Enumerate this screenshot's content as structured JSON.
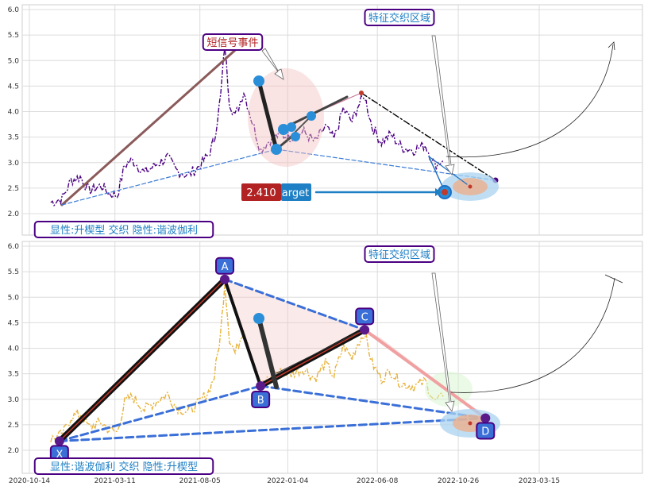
{
  "chart_data": [
    {
      "type": "line",
      "panel": "top",
      "ylim": [
        1.6,
        6.1
      ],
      "yticks": [
        "2.0",
        "2.5",
        "3.0",
        "3.5",
        "4.0",
        "4.5",
        "5.0",
        "5.5",
        "6.0"
      ],
      "xticks": [],
      "grid": true,
      "series_color": "#4b0082",
      "series": [
        {
          "x": [],
          "values": []
        }
      ],
      "annotations": {
        "event_label": "短信号事件",
        "zone_label": "特征交织区域",
        "pattern_label": "显性:升楔型 交织 隐性:谐波伽利",
        "target_value": "2.410",
        "target_text": "arget"
      }
    },
    {
      "type": "line",
      "panel": "bottom",
      "ylim": [
        1.6,
        6.1
      ],
      "yticks": [
        "2.0",
        "2.5",
        "3.0",
        "3.5",
        "4.0",
        "4.5",
        "5.0",
        "5.5",
        "6.0"
      ],
      "xticks": [
        "2020-10-14",
        "2021-03-11",
        "2021-08-05",
        "2022-01-04",
        "2022-06-08",
        "2022-10-26",
        "2023-03-15"
      ],
      "grid": true,
      "series_color": "#e8b23a",
      "series": [
        {
          "x": [],
          "values": []
        }
      ],
      "points": [
        {
          "label": "X",
          "date": "2020-12-05",
          "value": 2.18
        },
        {
          "label": "A",
          "date": "2021-09-17",
          "value": 5.35
        },
        {
          "label": "B",
          "date": "2021-11-18",
          "value": 3.26
        },
        {
          "label": "C",
          "date": "2022-05-17",
          "value": 4.36
        },
        {
          "label": "D",
          "date": "2022-12-12",
          "value": 2.63
        }
      ],
      "annotations": {
        "zone_label": "特征交织区域",
        "pattern_label": "显性:谐波伽利 交织 隐性:升楔型"
      }
    }
  ],
  "colors": {
    "accent": "#1f77b4",
    "label_border": "#4b0082",
    "label_text_top": "#1e7fc4",
    "event_text": "#b22222",
    "target_bg": "#b22222"
  }
}
